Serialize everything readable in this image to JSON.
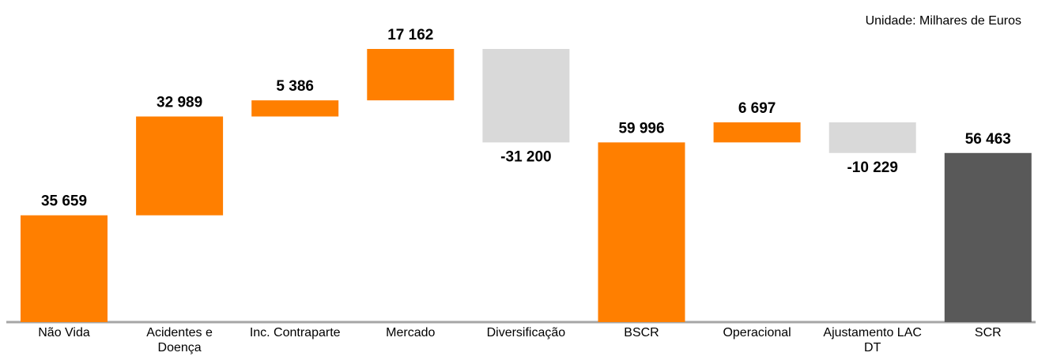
{
  "chart_data": {
    "type": "waterfall",
    "subtitle": "Unidade: Milhares de Euros",
    "categories": [
      "Não Vida",
      "Acidentes e Doença",
      "Inc. Contraparte",
      "Mercado",
      "Diversificação",
      "BSCR",
      "Operacional",
      "Ajustamento LAC DT",
      "SCR"
    ],
    "values": [
      35659,
      32989,
      5386,
      17162,
      -31200,
      59996,
      6697,
      -10229,
      56463
    ],
    "value_labels": [
      "35 659",
      "32 989",
      "5 386",
      "17 162",
      "-31 200",
      "59 996",
      "6 697",
      "-10 229",
      "56 463"
    ],
    "measure": [
      "relative",
      "relative",
      "relative",
      "relative",
      "relative",
      "total",
      "relative",
      "relative",
      "total"
    ],
    "colors": [
      "#ff7f00",
      "#ff7f00",
      "#ff7f00",
      "#ff7f00",
      "#d9d9d9",
      "#ff7f00",
      "#ff7f00",
      "#d9d9d9",
      "#595959"
    ]
  }
}
